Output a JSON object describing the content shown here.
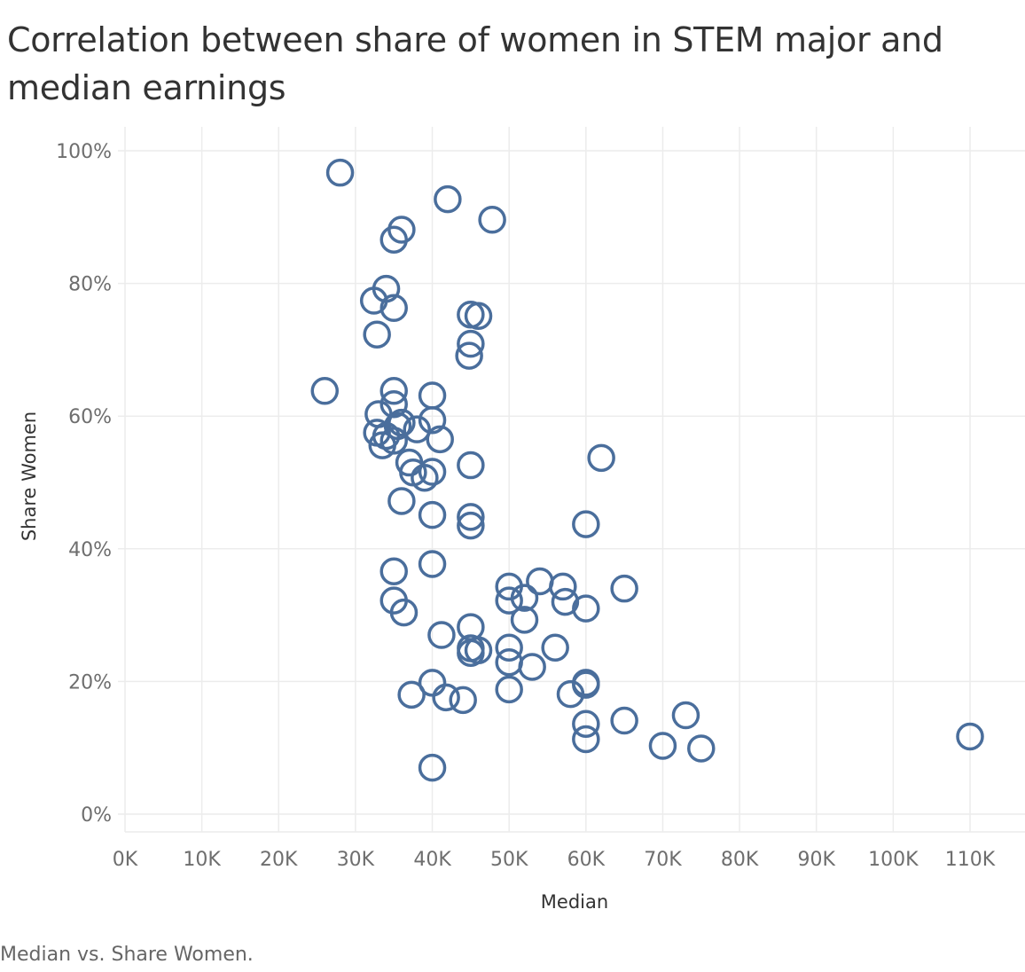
{
  "title": "Correlation between share of women  in STEM major and median earnings",
  "caption": "Median vs. Share Women.",
  "colors": {
    "marker": "#4e79a7",
    "grid": "#ececec"
  },
  "chart_data": {
    "type": "scatter",
    "xlabel": "Median",
    "ylabel": "Share Women",
    "xlim": [
      0,
      110000
    ],
    "ylim": [
      0,
      1
    ],
    "x_ticks": [
      0,
      10000,
      20000,
      30000,
      40000,
      50000,
      60000,
      70000,
      80000,
      90000,
      100000,
      110000
    ],
    "x_tick_labels": [
      "0K",
      "10K",
      "20K",
      "30K",
      "40K",
      "50K",
      "60K",
      "70K",
      "80K",
      "90K",
      "100K",
      "110K"
    ],
    "y_ticks": [
      0,
      0.2,
      0.4,
      0.6,
      0.8,
      1.0
    ],
    "y_tick_labels": [
      "0%",
      "20%",
      "40%",
      "60%",
      "80%",
      "100%"
    ],
    "grid": true,
    "points": [
      {
        "x": 28000,
        "y": 0.967
      },
      {
        "x": 42000,
        "y": 0.927
      },
      {
        "x": 47800,
        "y": 0.896
      },
      {
        "x": 36000,
        "y": 0.881
      },
      {
        "x": 35000,
        "y": 0.866
      },
      {
        "x": 34000,
        "y": 0.792
      },
      {
        "x": 32400,
        "y": 0.774
      },
      {
        "x": 35000,
        "y": 0.763
      },
      {
        "x": 45000,
        "y": 0.753
      },
      {
        "x": 46000,
        "y": 0.751
      },
      {
        "x": 32800,
        "y": 0.723
      },
      {
        "x": 45000,
        "y": 0.709
      },
      {
        "x": 44800,
        "y": 0.691
      },
      {
        "x": 26000,
        "y": 0.638
      },
      {
        "x": 35000,
        "y": 0.638
      },
      {
        "x": 40000,
        "y": 0.631
      },
      {
        "x": 35000,
        "y": 0.618
      },
      {
        "x": 33000,
        "y": 0.603
      },
      {
        "x": 36000,
        "y": 0.59
      },
      {
        "x": 40000,
        "y": 0.594
      },
      {
        "x": 38000,
        "y": 0.58
      },
      {
        "x": 35500,
        "y": 0.585
      },
      {
        "x": 32800,
        "y": 0.575
      },
      {
        "x": 34000,
        "y": 0.57
      },
      {
        "x": 41000,
        "y": 0.565
      },
      {
        "x": 33500,
        "y": 0.556
      },
      {
        "x": 35000,
        "y": 0.563
      },
      {
        "x": 62000,
        "y": 0.537
      },
      {
        "x": 37000,
        "y": 0.53
      },
      {
        "x": 45000,
        "y": 0.526
      },
      {
        "x": 37500,
        "y": 0.515
      },
      {
        "x": 40000,
        "y": 0.516
      },
      {
        "x": 39000,
        "y": 0.507
      },
      {
        "x": 36000,
        "y": 0.472
      },
      {
        "x": 40000,
        "y": 0.451
      },
      {
        "x": 45000,
        "y": 0.448
      },
      {
        "x": 45000,
        "y": 0.435
      },
      {
        "x": 60000,
        "y": 0.437
      },
      {
        "x": 40000,
        "y": 0.377
      },
      {
        "x": 35000,
        "y": 0.366
      },
      {
        "x": 54000,
        "y": 0.351
      },
      {
        "x": 50000,
        "y": 0.343
      },
      {
        "x": 57000,
        "y": 0.343
      },
      {
        "x": 65000,
        "y": 0.34
      },
      {
        "x": 52000,
        "y": 0.326
      },
      {
        "x": 50000,
        "y": 0.322
      },
      {
        "x": 35000,
        "y": 0.322
      },
      {
        "x": 57300,
        "y": 0.32
      },
      {
        "x": 60000,
        "y": 0.31
      },
      {
        "x": 36300,
        "y": 0.304
      },
      {
        "x": 52000,
        "y": 0.293
      },
      {
        "x": 45000,
        "y": 0.282
      },
      {
        "x": 41200,
        "y": 0.27
      },
      {
        "x": 45000,
        "y": 0.25
      },
      {
        "x": 46000,
        "y": 0.247
      },
      {
        "x": 50000,
        "y": 0.251
      },
      {
        "x": 56000,
        "y": 0.251
      },
      {
        "x": 45000,
        "y": 0.243
      },
      {
        "x": 50000,
        "y": 0.229
      },
      {
        "x": 53000,
        "y": 0.222
      },
      {
        "x": 40000,
        "y": 0.198
      },
      {
        "x": 60000,
        "y": 0.198
      },
      {
        "x": 60000,
        "y": 0.195
      },
      {
        "x": 50000,
        "y": 0.188
      },
      {
        "x": 58000,
        "y": 0.181
      },
      {
        "x": 37300,
        "y": 0.18
      },
      {
        "x": 41800,
        "y": 0.176
      },
      {
        "x": 44000,
        "y": 0.172
      },
      {
        "x": 73000,
        "y": 0.149
      },
      {
        "x": 65000,
        "y": 0.141
      },
      {
        "x": 60000,
        "y": 0.136
      },
      {
        "x": 110000,
        "y": 0.117
      },
      {
        "x": 60000,
        "y": 0.113
      },
      {
        "x": 70000,
        "y": 0.103
      },
      {
        "x": 75000,
        "y": 0.099
      },
      {
        "x": 40000,
        "y": 0.07
      }
    ]
  }
}
